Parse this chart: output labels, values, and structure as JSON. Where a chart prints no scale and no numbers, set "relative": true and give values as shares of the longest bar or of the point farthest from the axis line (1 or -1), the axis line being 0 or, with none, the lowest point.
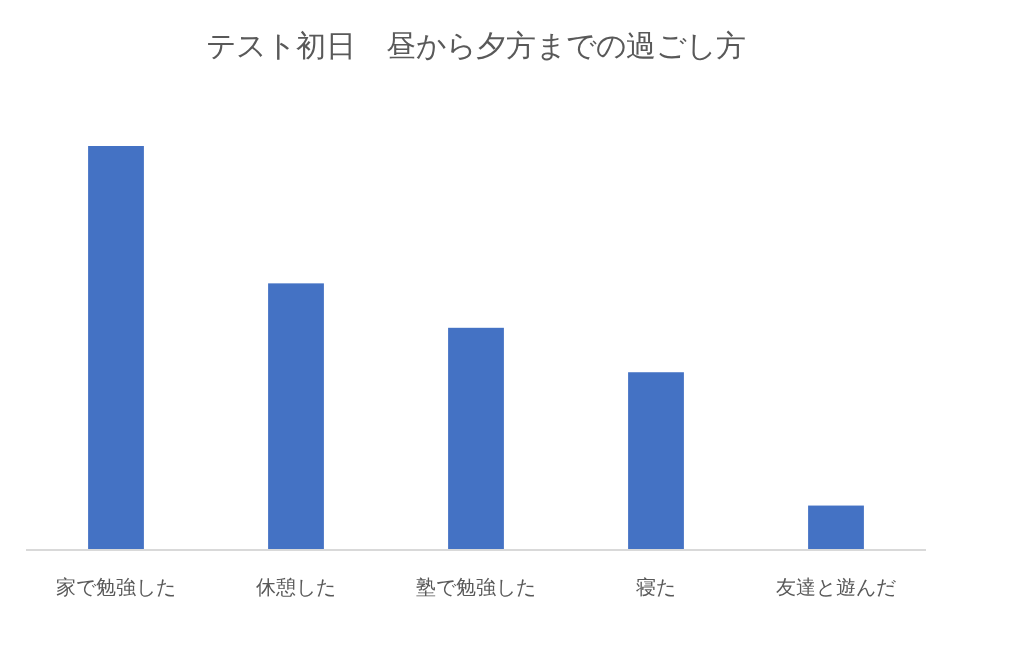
{
  "chart_data": {
    "type": "bar",
    "title": "テスト初日　昼から夕方までの過ごし方",
    "categories": [
      "家で勉強した",
      "休憩した",
      "塾で勉強した",
      "寝た",
      "友達と遊んだ"
    ],
    "values": [
      1,
      0.66,
      0.55,
      0.44,
      0.11
    ],
    "color": "#4472c4",
    "relative": true
  }
}
